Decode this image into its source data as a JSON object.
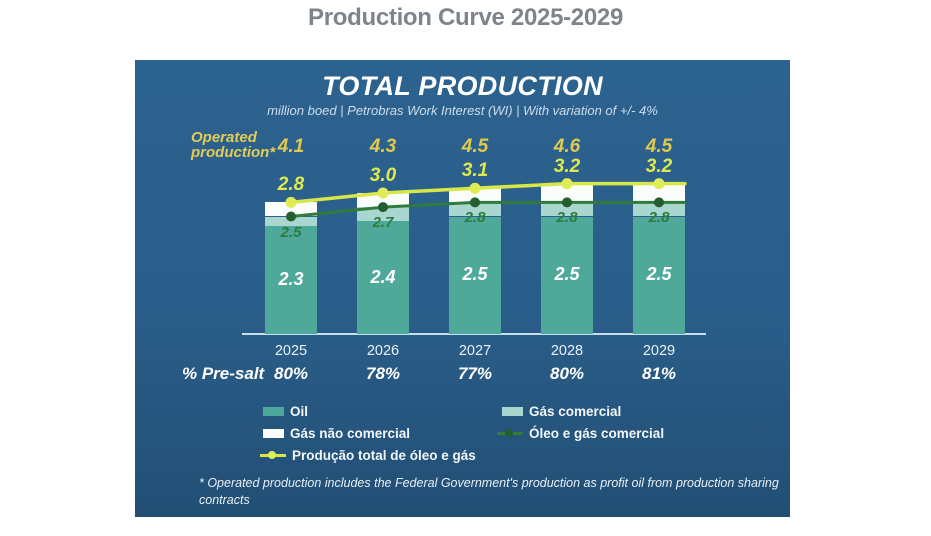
{
  "page": {
    "title": "Production Curve 2025-2029"
  },
  "panel": {
    "title": "TOTAL PRODUCTION",
    "subtitle": "million boed | Petrobras Work Interest (WI) | With variation of +/- 4%",
    "operated_label": "Operated production*",
    "pre_salt_label": "% Pre-salt",
    "footnote": "* Operated production includes the Federal Government's production as profit oil from production sharing contracts"
  },
  "colors": {
    "panel_bg": "#2a5e8a",
    "title_gray": "#7d848b",
    "oil": "#4fa99b",
    "gas_comercial": "#a9d6cf",
    "gas_nao_comercial": "#fbfdfc",
    "line_oleo_gas_comercial": "#2e7b3c",
    "line_oleo_gas_comercial_dot": "#245d2f",
    "line_producao_total": "#d7e747",
    "line_producao_total_dot": "#dfec55",
    "operated_values_gold": "#dfc94f",
    "total_values_yellow": "#dcea4e",
    "axis_line": "#c5deec"
  },
  "chart_data": {
    "type": "bar",
    "title": "TOTAL PRODUCTION",
    "subtitle": "million boed | Petrobras Work Interest (WI) | With variation of +/- 4%",
    "categories": [
      "2025",
      "2026",
      "2027",
      "2028",
      "2029"
    ],
    "series": [
      {
        "name": "Oil",
        "type": "bar-stack",
        "values": [
          2.3,
          2.4,
          2.5,
          2.5,
          2.5
        ],
        "labeled": true
      },
      {
        "name": "Gás comercial",
        "type": "bar-stack",
        "values": [
          0.2,
          0.3,
          0.3,
          0.3,
          0.3
        ],
        "labeled": false
      },
      {
        "name": "Gás não comercial",
        "type": "bar-stack",
        "values": [
          0.3,
          0.3,
          0.3,
          0.4,
          0.4
        ],
        "labeled": false
      },
      {
        "name": "Óleo e gás comercial",
        "type": "line",
        "values": [
          2.5,
          2.7,
          2.8,
          2.8,
          2.8
        ],
        "labeled": true
      },
      {
        "name": "Produção total de óleo e gás",
        "type": "line",
        "values": [
          2.8,
          3.0,
          3.1,
          3.2,
          3.2
        ],
        "labeled": true
      }
    ],
    "operated_production_values": [
      4.1,
      4.3,
      4.5,
      4.6,
      4.5
    ],
    "pre_salt_percent": [
      "80%",
      "78%",
      "77%",
      "80%",
      "81%"
    ],
    "ylim": [
      0,
      3.5
    ],
    "grid": false,
    "legend_position": "bottom"
  },
  "legend": {
    "items": [
      {
        "label": "Oil",
        "swatch": "rect-oil"
      },
      {
        "label": "Gás comercial",
        "swatch": "rect-gas-comercial"
      },
      {
        "label": "Gás não comercial",
        "swatch": "rect-white"
      },
      {
        "label": "Óleo e gás comercial",
        "swatch": "line-green"
      },
      {
        "label": "Produção total de óleo e gás",
        "swatch": "line-yellow"
      }
    ]
  }
}
